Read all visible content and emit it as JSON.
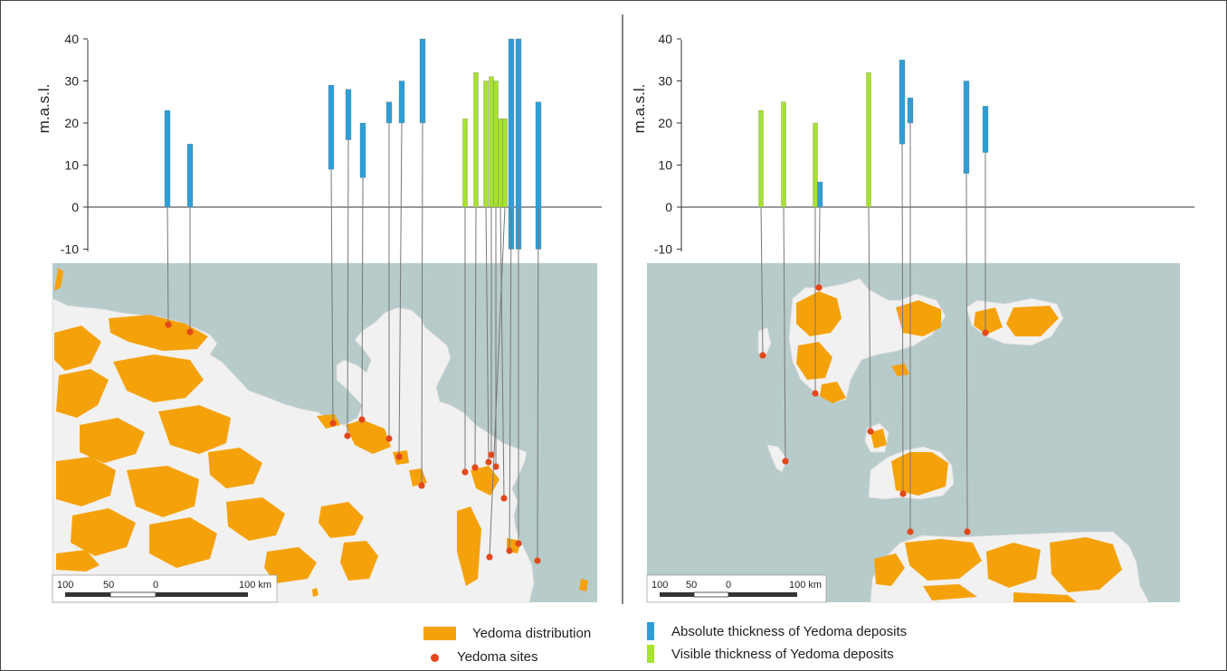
{
  "colors": {
    "absolute": "#2e9fd6",
    "visible": "#a6e22e",
    "yedoma": "#f5a20a",
    "site": "#e2481b",
    "sea": "#b7cbcb",
    "land": "#f1f1f1"
  },
  "legend": {
    "yedoma_distribution": "Yedoma distribution",
    "yedoma_sites": "Yedoma sites",
    "absolute_thickness": "Absolute thickness of Yedoma deposits",
    "visible_thickness": "Visible thickness of Yedoma deposits"
  },
  "chart_data": [
    {
      "type": "bar",
      "ylabel": "m.a.s.l.",
      "ylim": [
        -10,
        40
      ],
      "yticks": [
        -10,
        0,
        10,
        20,
        30,
        40
      ],
      "scalebar": {
        "labels": [
          "100",
          "50",
          "0",
          "100 km"
        ]
      },
      "series": [
        {
          "kind": "absolute",
          "bars": [
            [
              0,
              23
            ],
            [
              0,
              15
            ],
            [
              9,
              29
            ],
            [
              16,
              28
            ],
            [
              7,
              20
            ],
            [
              20,
              25
            ],
            [
              20,
              30
            ],
            [
              20,
              40
            ],
            [
              -10,
              40
            ],
            [
              -10,
              40
            ],
            [
              -10,
              25
            ]
          ]
        },
        {
          "kind": "visible",
          "bars": [
            [
              0,
              21
            ],
            [
              0,
              32
            ],
            [
              0,
              30
            ],
            [
              0,
              31
            ],
            [
              0,
              30
            ],
            [
              0,
              21
            ],
            [
              0,
              21
            ]
          ]
        }
      ]
    },
    {
      "type": "bar",
      "ylabel": "m.a.s.l.",
      "ylim": [
        -10,
        40
      ],
      "yticks": [
        -10,
        0,
        10,
        20,
        30,
        40
      ],
      "scalebar": {
        "labels": [
          "100",
          "50",
          "0",
          "100 km"
        ]
      },
      "series": [
        {
          "kind": "absolute",
          "bars": [
            [
              0,
              6
            ],
            [
              15,
              35
            ],
            [
              20,
              26
            ],
            [
              8,
              30
            ],
            [
              13,
              24
            ]
          ]
        },
        {
          "kind": "visible",
          "bars": [
            [
              0,
              23
            ],
            [
              0,
              25
            ],
            [
              0,
              20
            ],
            [
              0,
              32
            ]
          ]
        }
      ]
    }
  ]
}
